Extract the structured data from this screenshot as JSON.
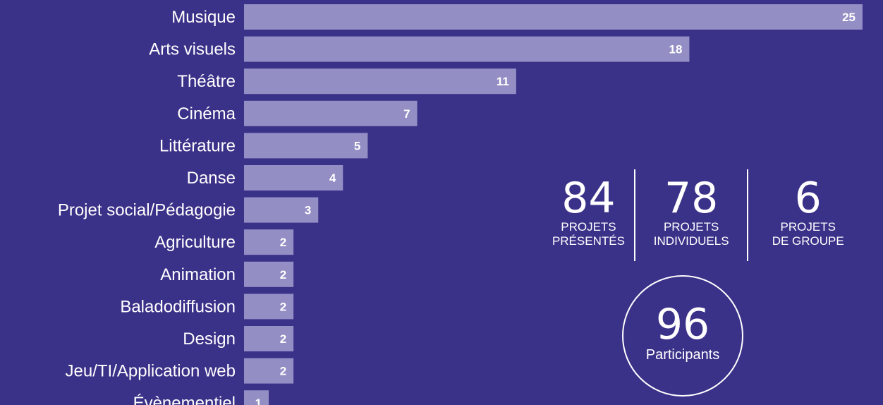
{
  "chart_data": {
    "type": "bar",
    "orientation": "horizontal",
    "categories": [
      "Musique",
      "Arts visuels",
      "Théâtre",
      "Cinéma",
      "Littérature",
      "Danse",
      "Projet social/Pédagogie",
      "Agriculture",
      "Animation",
      "Baladodiffusion",
      "Design",
      "Jeu/TI/Application web",
      "Évènementiel"
    ],
    "values": [
      25,
      18,
      11,
      7,
      5,
      4,
      3,
      2,
      2,
      2,
      2,
      2,
      1
    ],
    "title": "",
    "xlabel": "",
    "ylabel": "",
    "xlim": [
      0,
      25
    ],
    "grid": false,
    "data_labels": true,
    "bar_color": "#938ec4"
  },
  "stats": [
    {
      "value": "84",
      "label_line1": "PROJETS",
      "label_line2": "PRÉSENTÉS"
    },
    {
      "value": "78",
      "label_line1": "PROJETS",
      "label_line2": "INDIVIDUELS"
    },
    {
      "value": "6",
      "label_line1": "PROJETS",
      "label_line2": "DE GROUPE"
    }
  ],
  "participants": {
    "value": "96",
    "label": "Participants"
  },
  "colors": {
    "background": "#3a3188",
    "bar": "#938ec4",
    "text": "#ffffff"
  }
}
